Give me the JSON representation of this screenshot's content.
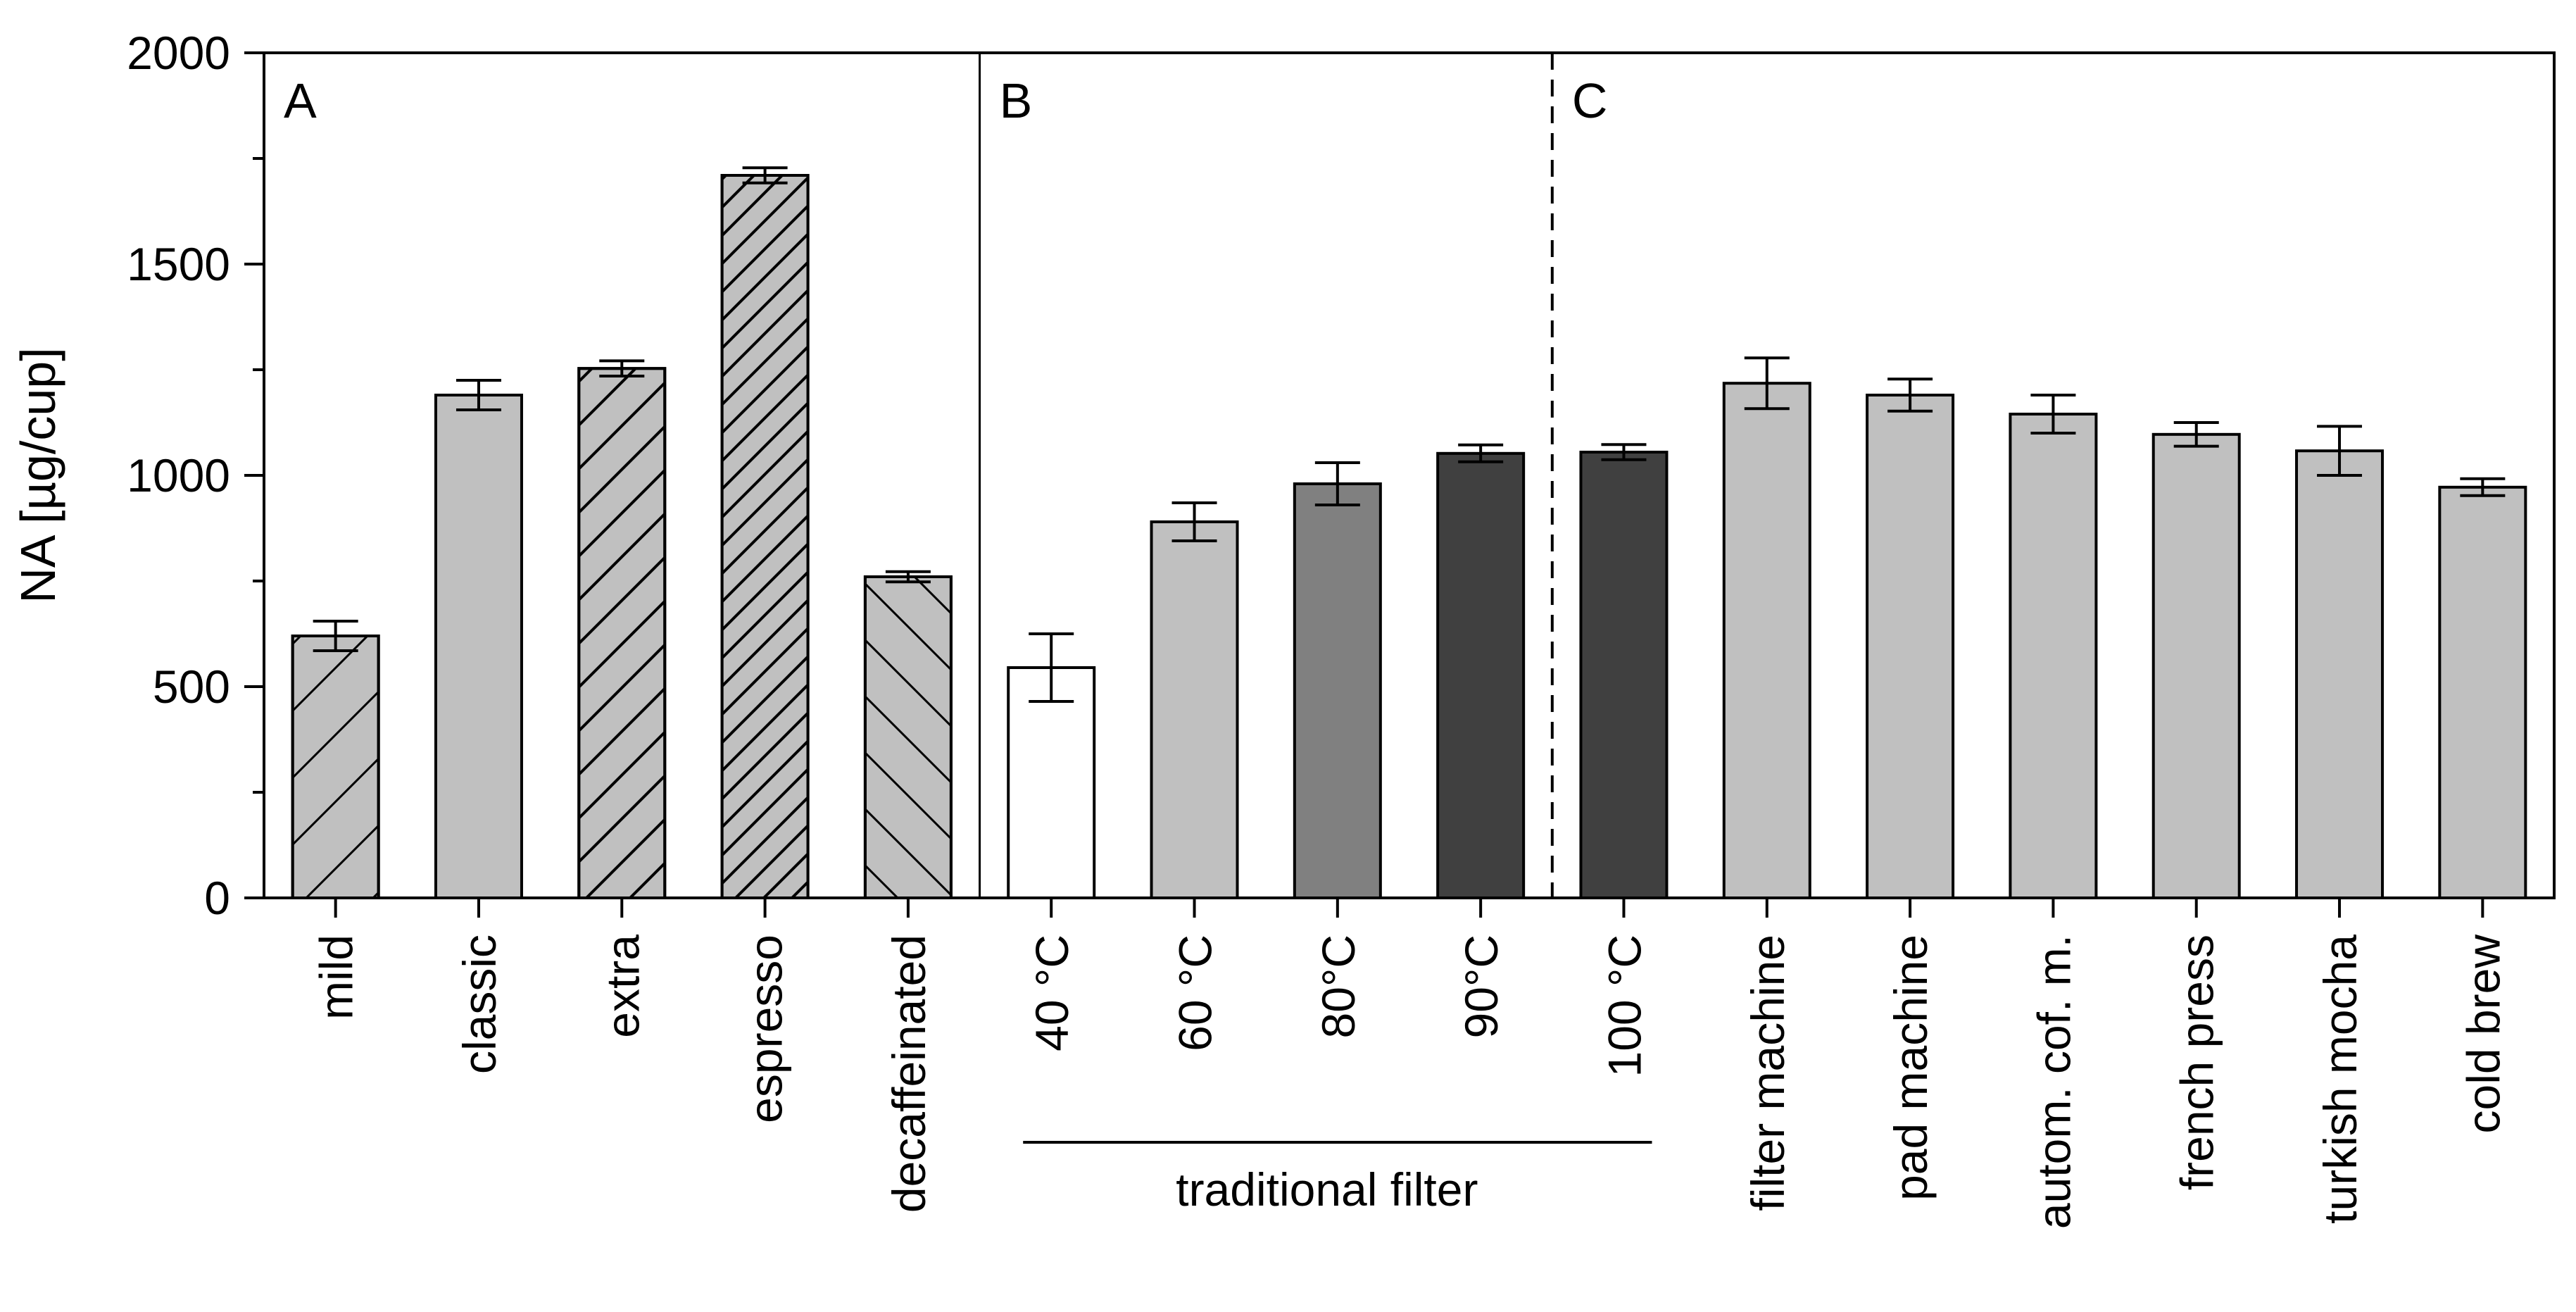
{
  "chart_data": {
    "type": "bar",
    "title": "",
    "xlabel": "",
    "ylabel": "NA [µg/cup]",
    "ylim": [
      0,
      2000
    ],
    "yticks": [
      0,
      500,
      1000,
      1500,
      2000
    ],
    "grid": false,
    "panels": [
      {
        "label": "A",
        "start_index": 0
      },
      {
        "label": "B",
        "start_index": 5
      },
      {
        "label": "C",
        "start_index": 9
      }
    ],
    "group_annotation": {
      "label": "traditional filter",
      "from_index": 5,
      "to_index": 9
    },
    "bars": [
      {
        "category": "mild",
        "value": 620,
        "error": 35,
        "fill": "#c0c0c0",
        "hatch": "forward-sparse"
      },
      {
        "category": "classic",
        "value": 1190,
        "error": 35,
        "fill": "#c0c0c0",
        "hatch": "none"
      },
      {
        "category": "extra",
        "value": 1253,
        "error": 18,
        "fill": "#c0c0c0",
        "hatch": "forward-medium"
      },
      {
        "category": "espresso",
        "value": 1710,
        "error": 18,
        "fill": "#c0c0c0",
        "hatch": "forward-dense"
      },
      {
        "category": "decaffeinated",
        "value": 760,
        "error": 12,
        "fill": "#c0c0c0",
        "hatch": "backward-sparse"
      },
      {
        "category": "40 °C",
        "value": 545,
        "error": 80,
        "fill": "#ffffff",
        "hatch": "none"
      },
      {
        "category": "60 °C",
        "value": 890,
        "error": 45,
        "fill": "#c0c0c0",
        "hatch": "none"
      },
      {
        "category": "80°C",
        "value": 980,
        "error": 50,
        "fill": "#808080",
        "hatch": "none"
      },
      {
        "category": "90°C",
        "value": 1052,
        "error": 20,
        "fill": "#404040",
        "hatch": "none"
      },
      {
        "category": "100 °C",
        "value": 1055,
        "error": 18,
        "fill": "#404040",
        "hatch": "none"
      },
      {
        "category": "filter machine",
        "value": 1218,
        "error": 60,
        "fill": "#c0c0c0",
        "hatch": "none"
      },
      {
        "category": "pad machine",
        "value": 1190,
        "error": 38,
        "fill": "#c0c0c0",
        "hatch": "none"
      },
      {
        "category": "autom. cof. m.",
        "value": 1145,
        "error": 45,
        "fill": "#c0c0c0",
        "hatch": "none"
      },
      {
        "category": "french press",
        "value": 1097,
        "error": 28,
        "fill": "#c0c0c0",
        "hatch": "none"
      },
      {
        "category": "turkish mocha",
        "value": 1058,
        "error": 58,
        "fill": "#c0c0c0",
        "hatch": "none"
      },
      {
        "category": "cold brew",
        "value": 972,
        "error": 20,
        "fill": "#c0c0c0",
        "hatch": "none"
      }
    ]
  }
}
